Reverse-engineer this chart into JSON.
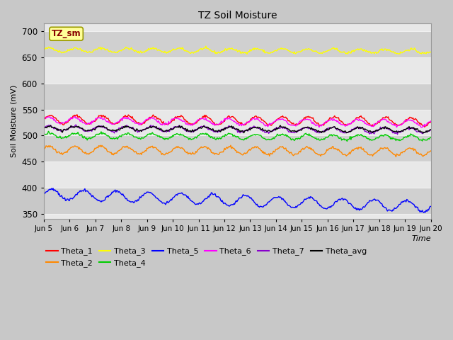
{
  "title": "TZ Soil Moisture",
  "ylabel": "Soil Moisture (mV)",
  "xlabel": "Time",
  "ylim": [
    340,
    715
  ],
  "fig_bg_color": "#c8c8c8",
  "plot_bg_color_light": "#e8e8e8",
  "plot_bg_color_dark": "#d0d0d0",
  "grid_color": "#f0f0f0",
  "series": {
    "Theta_1": {
      "color": "#ff0000",
      "base": 531,
      "trend": -0.28,
      "amp": 8,
      "freq": 15,
      "phase": 0.0
    },
    "Theta_2": {
      "color": "#ff8800",
      "base": 473,
      "trend": -0.25,
      "amp": 7,
      "freq": 15,
      "phase": 0.3
    },
    "Theta_3": {
      "color": "#ffff00",
      "base": 664,
      "trend": -0.18,
      "amp": 4,
      "freq": 15,
      "phase": 0.1
    },
    "Theta_4": {
      "color": "#00cc00",
      "base": 500,
      "trend": -0.28,
      "amp": 5,
      "freq": 15,
      "phase": 0.2
    },
    "Theta_5": {
      "color": "#0000ff",
      "base": 388,
      "trend": -1.6,
      "amp": 10,
      "freq": 12,
      "phase": 0.0
    },
    "Theta_6": {
      "color": "#ff00ff",
      "base": 529,
      "trend": -0.35,
      "amp": 6,
      "freq": 15,
      "phase": 0.5
    },
    "Theta_7": {
      "color": "#8800cc",
      "base": 514,
      "trend": -0.3,
      "amp": 5,
      "freq": 15,
      "phase": 0.4
    },
    "Theta_avg": {
      "color": "#000000",
      "base": 514,
      "trend": -0.22,
      "amp": 4,
      "freq": 15,
      "phase": 0.15
    }
  },
  "xtick_labels": [
    "Jun 5",
    "Jun 6",
    "Jun 7",
    "Jun 8",
    "Jun 9",
    "Jun 10",
    "Jun 11",
    "Jun 12",
    "Jun 13",
    "Jun 14",
    "Jun 15",
    "Jun 16",
    "Jun 17",
    "Jun 18",
    "Jun 19",
    "Jun 20"
  ],
  "n_points": 500,
  "label_box_text": "TZ_sm",
  "label_box_facecolor": "#ffff99",
  "label_box_edgecolor": "#999900",
  "label_box_textcolor": "#880000"
}
